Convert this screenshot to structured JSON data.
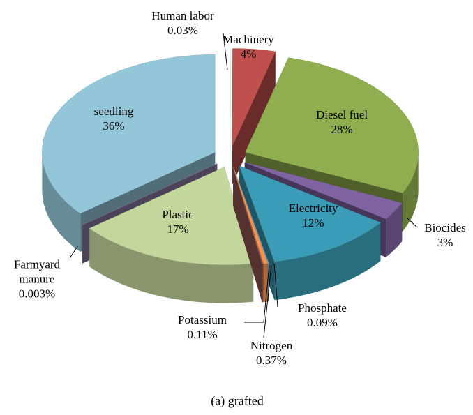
{
  "chart_data": {
    "type": "pie3d",
    "categories": [
      "Human labor",
      "Machinery",
      "Diesel fuel",
      "Biocides",
      "Electricity",
      "Phosphate",
      "Nitrogen",
      "Potassium",
      "Plastic",
      "Farmyard manure",
      "seedling"
    ],
    "values": [
      0.03,
      4,
      28,
      3,
      12,
      0.09,
      0.37,
      0.11,
      17,
      0.003,
      36
    ],
    "value_labels": [
      "0.03%",
      "4%",
      "28%",
      "3%",
      "12%",
      "0.09%",
      "0.37%",
      "0.11%",
      "17%",
      "0.003%",
      "36%"
    ],
    "colors": [
      "#e8e8e8",
      "#c0504d",
      "#8fae4f",
      "#8064a2",
      "#3a9cb6",
      "#7fa6d8",
      "#f79646",
      "#9a5a58",
      "#c3d69b",
      "#8a7aa0",
      "#93c6d8"
    ],
    "caption": "(a) grafted"
  }
}
